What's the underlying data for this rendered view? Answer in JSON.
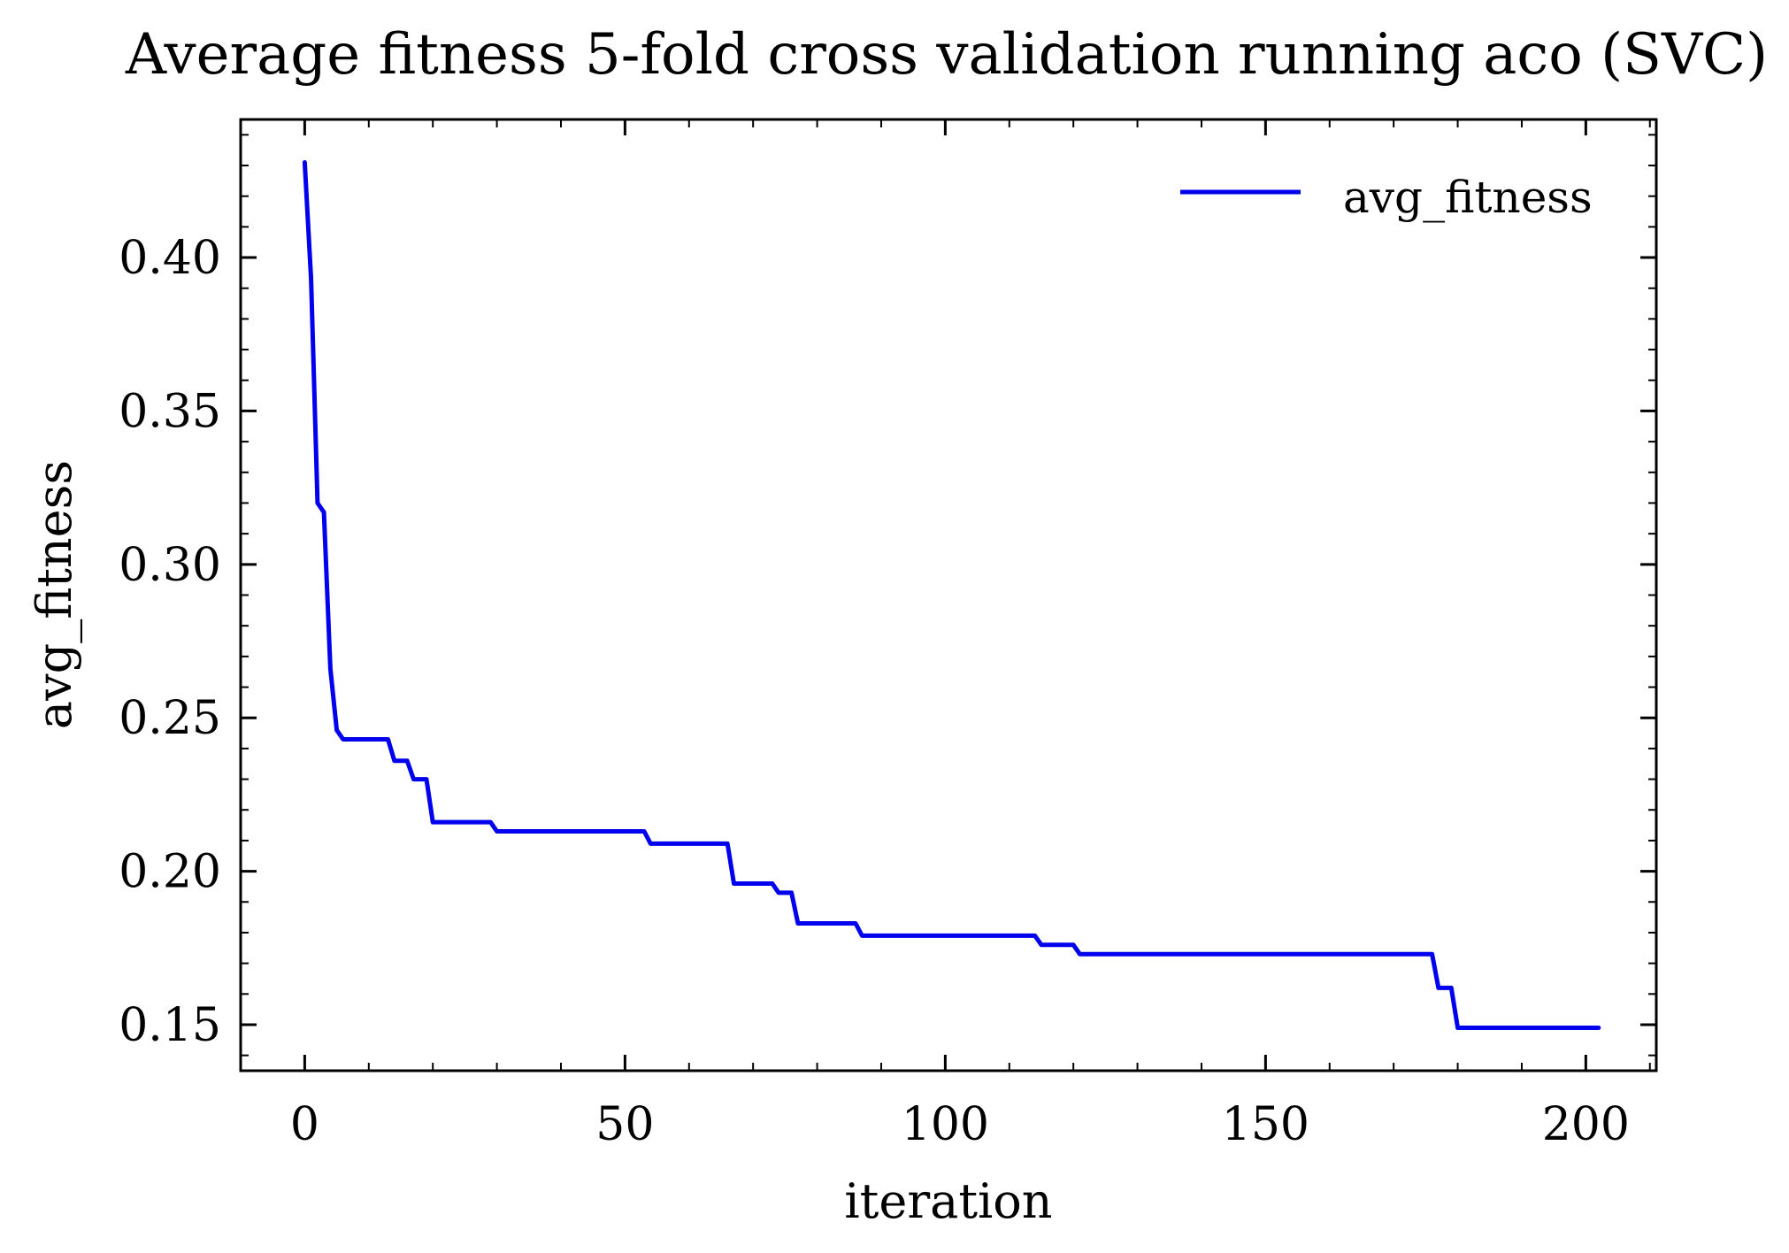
{
  "chart_data": {
    "type": "line",
    "title": "Average fitness 5-fold cross validation running aco (SVC)",
    "xlabel": "iteration",
    "ylabel": "avg_fitness",
    "xlim": [
      -10,
      211
    ],
    "ylim": [
      0.135,
      0.445
    ],
    "xticks": [
      0,
      50,
      100,
      150,
      200
    ],
    "yticks": [
      0.15,
      0.2,
      0.25,
      0.3,
      0.35,
      0.4
    ],
    "xtick_labels": [
      "0",
      "50",
      "100",
      "150",
      "200"
    ],
    "ytick_labels": [
      "0.15",
      "0.20",
      "0.25",
      "0.30",
      "0.35",
      "0.40"
    ],
    "legend": {
      "position": "top-right",
      "entries": [
        "avg_fitness"
      ]
    },
    "grid": false,
    "colors": {
      "avg_fitness": "#0000ee"
    },
    "series": [
      {
        "name": "avg_fitness",
        "x": [
          0,
          1,
          2,
          3,
          4,
          5,
          6,
          13,
          14,
          16,
          17,
          19,
          20,
          29,
          30,
          53,
          54,
          66,
          67,
          73,
          74,
          76,
          77,
          86,
          87,
          114,
          115,
          120,
          121,
          176,
          177,
          179,
          180,
          202
        ],
        "y": [
          0.431,
          0.393,
          0.32,
          0.317,
          0.266,
          0.246,
          0.243,
          0.243,
          0.236,
          0.236,
          0.23,
          0.23,
          0.216,
          0.216,
          0.213,
          0.213,
          0.209,
          0.209,
          0.196,
          0.196,
          0.193,
          0.193,
          0.183,
          0.183,
          0.179,
          0.179,
          0.176,
          0.176,
          0.173,
          0.173,
          0.162,
          0.162,
          0.149,
          0.149
        ]
      }
    ]
  }
}
